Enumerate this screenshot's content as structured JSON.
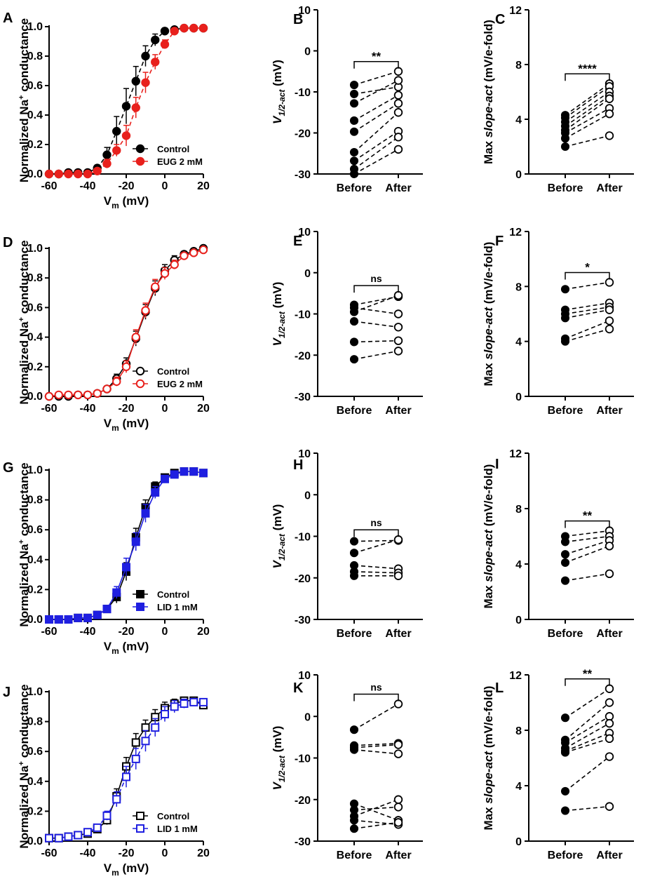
{
  "figure": {
    "panel_letters": [
      "A",
      "B",
      "C",
      "D",
      "E",
      "F",
      "G",
      "H",
      "I",
      "J",
      "K",
      "L"
    ],
    "colors": {
      "black": "#000000",
      "red": "#e8201c",
      "blue": "#1f1fe0"
    }
  },
  "chart_data": [
    {
      "panel": "A",
      "type": "line",
      "xlabel": "V",
      "xlabel_sub": "m",
      "xlabel_unit": " (mV)",
      "ylabel": "Normalized Na",
      "ylabel_sup": "+",
      "ylabel_rest": " conductance",
      "xlim": [
        -60,
        20
      ],
      "ylim": [
        0,
        1.0
      ],
      "x_ticks": [
        -60,
        -40,
        -20,
        0,
        20
      ],
      "x_tick_labels": [
        "-60",
        "-40",
        "-20",
        "0",
        "20"
      ],
      "y_ticks": [
        0,
        0.2,
        0.4,
        0.6,
        0.8,
        1.0
      ],
      "y_tick_labels": [
        "0.0",
        "0.2",
        "0.4",
        "0.6",
        "0.8",
        "1.0"
      ],
      "legend": {
        "position": "lower-right",
        "entries": [
          "Control",
          "EUG 2 mM"
        ]
      },
      "series": [
        {
          "name": "Control",
          "color": "#000000",
          "marker": "circle-filled",
          "line": "dashed",
          "x": [
            -60,
            -55,
            -50,
            -45,
            -40,
            -35,
            -30,
            -25,
            -20,
            -15,
            -10,
            -5,
            0,
            5,
            10,
            15,
            20
          ],
          "y": [
            0,
            0,
            0.01,
            0.01,
            0.01,
            0.04,
            0.13,
            0.29,
            0.46,
            0.63,
            0.8,
            0.91,
            0.97,
            0.98,
            0.99,
            0.99,
            0.99
          ],
          "err": [
            0,
            0,
            0,
            0,
            0.01,
            0.02,
            0.05,
            0.1,
            0.12,
            0.1,
            0.07,
            0.04,
            0.02,
            0.01,
            0.01,
            0,
            0
          ]
        },
        {
          "name": "EUG 2 mM",
          "color": "#e8201c",
          "marker": "circle-filled",
          "line": "dashed",
          "x": [
            -60,
            -55,
            -50,
            -45,
            -40,
            -35,
            -30,
            -25,
            -20,
            -15,
            -10,
            -5,
            0,
            5,
            10,
            15,
            20
          ],
          "y": [
            0,
            0,
            0,
            0,
            0,
            0.02,
            0.07,
            0.16,
            0.26,
            0.45,
            0.62,
            0.76,
            0.88,
            0.97,
            0.99,
            0.99,
            0.99
          ],
          "err": [
            0,
            0,
            0,
            0,
            0,
            0.01,
            0.03,
            0.04,
            0.07,
            0.07,
            0.07,
            0.05,
            0.03,
            0.01,
            0.01,
            0,
            0
          ]
        }
      ]
    },
    {
      "panel": "B",
      "type": "paired-scatter",
      "ylabel": "V",
      "ylabel_sub": "1/2-act",
      "ylabel_unit": " (mV)",
      "ylim": [
        -30,
        10
      ],
      "y_ticks": [
        -30,
        -20,
        -10,
        0,
        10
      ],
      "y_tick_labels": [
        "-30",
        "-20",
        "-10",
        "0",
        "10"
      ],
      "categories": [
        "Before",
        "After"
      ],
      "before": [
        -8.3,
        -10.5,
        -12.8,
        -17,
        -19.7,
        -24.7,
        -26.8,
        -28.8,
        -30
      ],
      "after": [
        -5,
        -8.8,
        -7.2,
        -10.8,
        -12.8,
        -15,
        -19.6,
        -21,
        -24
      ],
      "significance": "**"
    },
    {
      "panel": "C",
      "type": "paired-scatter",
      "ylabel": "Max ",
      "ylabel_italic": "slope-act",
      "ylabel_unit": " (mV/e-fold)",
      "ylim": [
        0,
        12
      ],
      "y_ticks": [
        0,
        4,
        8,
        12
      ],
      "y_tick_labels": [
        "0",
        "4",
        "8",
        "12"
      ],
      "categories": [
        "Before",
        "After"
      ],
      "before": [
        4.3,
        4.1,
        3.8,
        3.5,
        3.2,
        3.0,
        2.6,
        2.0
      ],
      "after": [
        6.6,
        6.4,
        6.0,
        5.7,
        5.5,
        4.8,
        4.4,
        2.8
      ],
      "significance": "****"
    },
    {
      "panel": "D",
      "type": "line",
      "xlabel": "V",
      "xlabel_sub": "m",
      "xlabel_unit": " (mV)",
      "ylabel": "Normalized Na",
      "ylabel_sup": "+",
      "ylabel_rest": " conductance",
      "xlim": [
        -60,
        20
      ],
      "ylim": [
        0,
        1.0
      ],
      "x_ticks": [
        -60,
        -40,
        -20,
        0,
        20
      ],
      "x_tick_labels": [
        "-60",
        "-40",
        "-20",
        "0",
        "20"
      ],
      "y_ticks": [
        0,
        0.2,
        0.4,
        0.6,
        0.8,
        1.0
      ],
      "y_tick_labels": [
        "0.0",
        "0.2",
        "0.4",
        "0.6",
        "0.8",
        "1.0"
      ],
      "legend": {
        "position": "lower-right",
        "entries": [
          "Control",
          "EUG 2 mM"
        ]
      },
      "series": [
        {
          "name": "Control",
          "color": "#000000",
          "marker": "circle-open",
          "line": "solid",
          "x": [
            -60,
            -55,
            -50,
            -45,
            -40,
            -35,
            -30,
            -25,
            -20,
            -15,
            -10,
            -5,
            0,
            5,
            10,
            15,
            20
          ],
          "y": [
            0,
            0,
            0,
            0.01,
            0.01,
            0.02,
            0.05,
            0.12,
            0.22,
            0.39,
            0.57,
            0.73,
            0.85,
            0.92,
            0.96,
            0.98,
            1.0
          ],
          "err": [
            0,
            0,
            0,
            0,
            0,
            0.01,
            0.02,
            0.03,
            0.04,
            0.05,
            0.05,
            0.05,
            0.04,
            0.03,
            0.02,
            0.01,
            0
          ]
        },
        {
          "name": "EUG 2 mM",
          "color": "#e8201c",
          "marker": "circle-open",
          "line": "solid",
          "x": [
            -60,
            -55,
            -50,
            -45,
            -40,
            -35,
            -30,
            -25,
            -20,
            -15,
            -10,
            -5,
            0,
            5,
            10,
            15,
            20
          ],
          "y": [
            0,
            0.01,
            0.01,
            0.01,
            0.01,
            0.02,
            0.05,
            0.1,
            0.2,
            0.4,
            0.58,
            0.74,
            0.83,
            0.89,
            0.95,
            0.97,
            0.99
          ],
          "err": [
            0,
            0,
            0,
            0,
            0,
            0.01,
            0.02,
            0.03,
            0.04,
            0.05,
            0.05,
            0.05,
            0.04,
            0.03,
            0.02,
            0.01,
            0
          ]
        }
      ]
    },
    {
      "panel": "E",
      "type": "paired-scatter",
      "ylabel": "V",
      "ylabel_sub": "1/2-act",
      "ylabel_unit": " (mV)",
      "ylim": [
        -30,
        10
      ],
      "y_ticks": [
        -30,
        -20,
        -10,
        0,
        10
      ],
      "y_tick_labels": [
        "-30",
        "-20",
        "-10",
        "0",
        "10"
      ],
      "categories": [
        "Before",
        "After"
      ],
      "before": [
        -7.8,
        -8.5,
        -9.5,
        -11.8,
        -16.8,
        -21
      ],
      "after": [
        -5.8,
        -10,
        -5.5,
        -13.2,
        -16.5,
        -19
      ],
      "significance": "ns"
    },
    {
      "panel": "F",
      "type": "paired-scatter",
      "ylabel": "Max ",
      "ylabel_italic": "slope-act",
      "ylabel_unit": " (mV/e-fold)",
      "ylim": [
        0,
        12
      ],
      "y_ticks": [
        0,
        4,
        8,
        12
      ],
      "y_tick_labels": [
        "0",
        "4",
        "8",
        "12"
      ],
      "categories": [
        "Before",
        "After"
      ],
      "before": [
        7.8,
        6.3,
        6.0,
        5.7,
        4.2,
        4.0
      ],
      "after": [
        8.3,
        6.8,
        6.5,
        6.3,
        5.5,
        4.9
      ],
      "significance": "*"
    },
    {
      "panel": "G",
      "type": "line",
      "xlabel": "V",
      "xlabel_sub": "m",
      "xlabel_unit": " (mV)",
      "ylabel": "Normalized Na",
      "ylabel_sup": "+",
      "ylabel_rest": " conductance",
      "xlim": [
        -60,
        20
      ],
      "ylim": [
        0,
        1.0
      ],
      "x_ticks": [
        -60,
        -40,
        -20,
        0,
        20
      ],
      "x_tick_labels": [
        "-60",
        "-40",
        "-20",
        "0",
        "20"
      ],
      "y_ticks": [
        0,
        0.2,
        0.4,
        0.6,
        0.8,
        1.0
      ],
      "y_tick_labels": [
        "0.0",
        "0.2",
        "0.4",
        "0.6",
        "0.8",
        "1.0"
      ],
      "legend": {
        "position": "lower-right",
        "entries": [
          "Control",
          "LID 1 mM"
        ]
      },
      "series": [
        {
          "name": "Control",
          "color": "#000000",
          "marker": "square-filled",
          "line": "solid",
          "x": [
            -60,
            -55,
            -50,
            -45,
            -40,
            -35,
            -30,
            -25,
            -20,
            -15,
            -10,
            -5,
            0,
            5,
            10,
            15,
            20
          ],
          "y": [
            0,
            0,
            0,
            0.01,
            0.01,
            0.03,
            0.07,
            0.15,
            0.32,
            0.55,
            0.75,
            0.89,
            0.95,
            0.98,
            0.99,
            0.99,
            0.98
          ],
          "err": [
            0,
            0,
            0,
            0,
            0,
            0.01,
            0.02,
            0.04,
            0.06,
            0.06,
            0.05,
            0.03,
            0.02,
            0.01,
            0.01,
            0,
            0
          ]
        },
        {
          "name": "LID 1 mM",
          "color": "#1f1fe0",
          "marker": "square-filled",
          "line": "solid",
          "x": [
            -60,
            -55,
            -50,
            -45,
            -40,
            -35,
            -30,
            -25,
            -20,
            -15,
            -10,
            -5,
            0,
            5,
            10,
            15,
            20
          ],
          "y": [
            0,
            0,
            0,
            0.01,
            0.01,
            0.03,
            0.07,
            0.18,
            0.35,
            0.52,
            0.71,
            0.85,
            0.94,
            0.97,
            0.99,
            0.99,
            0.98
          ],
          "err": [
            0,
            0,
            0,
            0,
            0,
            0.01,
            0.02,
            0.04,
            0.06,
            0.06,
            0.06,
            0.04,
            0.02,
            0.01,
            0.01,
            0,
            0
          ]
        }
      ]
    },
    {
      "panel": "H",
      "type": "paired-scatter",
      "ylabel": "V",
      "ylabel_sub": "1/2-act",
      "ylabel_unit": " (mV)",
      "ylim": [
        -30,
        10
      ],
      "y_ticks": [
        -30,
        -20,
        -10,
        0,
        10
      ],
      "y_tick_labels": [
        "-30",
        "-20",
        "-10",
        "0",
        "10"
      ],
      "categories": [
        "Before",
        "After"
      ],
      "before": [
        -11.2,
        -14,
        -17,
        -18.5,
        -19.5
      ],
      "after": [
        -11,
        -10.8,
        -17.8,
        -18.8,
        -19.5
      ],
      "significance": "ns"
    },
    {
      "panel": "I",
      "type": "paired-scatter",
      "ylabel": "Max ",
      "ylabel_italic": "slope-act",
      "ylabel_unit": " (mV/e-fold)",
      "ylim": [
        0,
        12
      ],
      "y_ticks": [
        0,
        4,
        8,
        12
      ],
      "y_tick_labels": [
        "0",
        "4",
        "8",
        "12"
      ],
      "categories": [
        "Before",
        "After"
      ],
      "before": [
        6.0,
        5.6,
        4.7,
        4.1,
        2.8
      ],
      "after": [
        6.4,
        6.0,
        5.7,
        5.3,
        3.3
      ],
      "significance": "**"
    },
    {
      "panel": "J",
      "type": "line",
      "xlabel": "V",
      "xlabel_sub": "m",
      "xlabel_unit": " (mV)",
      "ylabel": "Normalized Na",
      "ylabel_sup": "+",
      "ylabel_rest": " conductance",
      "xlim": [
        -60,
        20
      ],
      "ylim": [
        0,
        1.0
      ],
      "x_ticks": [
        -60,
        -40,
        -20,
        0,
        20
      ],
      "x_tick_labels": [
        "-60",
        "-40",
        "-20",
        "0",
        "20"
      ],
      "y_ticks": [
        0,
        0.2,
        0.4,
        0.6,
        0.8,
        1.0
      ],
      "y_tick_labels": [
        "0.0",
        "0.2",
        "0.4",
        "0.6",
        "0.8",
        "1.0"
      ],
      "legend": {
        "position": "lower-right",
        "entries": [
          "Control",
          "LID 1 mM"
        ]
      },
      "series": [
        {
          "name": "Control",
          "color": "#000000",
          "marker": "square-open",
          "line": "solid",
          "x": [
            -60,
            -55,
            -50,
            -45,
            -40,
            -35,
            -30,
            -25,
            -20,
            -15,
            -10,
            -5,
            0,
            5,
            10,
            15,
            20
          ],
          "y": [
            0.02,
            0.02,
            0.03,
            0.04,
            0.05,
            0.08,
            0.14,
            0.3,
            0.5,
            0.66,
            0.76,
            0.83,
            0.89,
            0.92,
            0.94,
            0.94,
            0.91
          ],
          "err": [
            0,
            0,
            0,
            0,
            0.01,
            0.02,
            0.03,
            0.05,
            0.06,
            0.06,
            0.05,
            0.05,
            0.04,
            0.03,
            0.02,
            0.02,
            0.02
          ]
        },
        {
          "name": "LID 1 mM",
          "color": "#1f1fe0",
          "marker": "square-open",
          "line": "dashed",
          "x": [
            -60,
            -55,
            -50,
            -45,
            -40,
            -35,
            -30,
            -25,
            -20,
            -15,
            -10,
            -5,
            0,
            5,
            10,
            15,
            20
          ],
          "y": [
            0.02,
            0.02,
            0.03,
            0.04,
            0.06,
            0.09,
            0.17,
            0.28,
            0.43,
            0.55,
            0.67,
            0.76,
            0.85,
            0.9,
            0.92,
            0.93,
            0.93
          ],
          "err": [
            0,
            0,
            0,
            0,
            0.01,
            0.02,
            0.03,
            0.05,
            0.07,
            0.07,
            0.07,
            0.06,
            0.05,
            0.04,
            0.03,
            0.02,
            0.02
          ]
        }
      ]
    },
    {
      "panel": "K",
      "type": "paired-scatter",
      "ylabel": "V",
      "ylabel_sub": "1/2-act",
      "ylabel_unit": " (mV)",
      "ylim": [
        -30,
        10
      ],
      "y_ticks": [
        -30,
        -20,
        -10,
        0,
        10
      ],
      "y_tick_labels": [
        "-30",
        "-20",
        "-10",
        "0",
        "10"
      ],
      "categories": [
        "Before",
        "After"
      ],
      "before": [
        -3.2,
        -7,
        -7.5,
        -8,
        -21,
        -22.5,
        -24,
        -25,
        -27
      ],
      "after": [
        3,
        -6.5,
        -6.8,
        -9,
        -25,
        -21.8,
        -20,
        -26,
        -25.5
      ],
      "significance": "ns"
    },
    {
      "panel": "L",
      "type": "paired-scatter",
      "ylabel": "Max ",
      "ylabel_italic": "slope-act",
      "ylabel_unit": " (mV/e-fold)",
      "ylim": [
        0,
        12
      ],
      "y_ticks": [
        0,
        4,
        8,
        12
      ],
      "y_tick_labels": [
        "0",
        "4",
        "8",
        "12"
      ],
      "categories": [
        "Before",
        "After"
      ],
      "before": [
        8.9,
        7.3,
        7.1,
        6.7,
        6.5,
        6.4,
        3.6,
        2.2
      ],
      "after": [
        11.0,
        10.0,
        9.0,
        8.5,
        7.8,
        7.4,
        6.1,
        2.5
      ],
      "significance": "**"
    }
  ]
}
